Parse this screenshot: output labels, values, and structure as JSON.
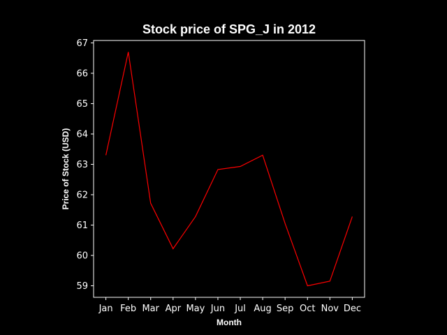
{
  "chart_data": {
    "type": "line",
    "title": "Stock price of SPG_J in 2012",
    "xlabel": "Month",
    "ylabel": "Price of Stock (USD)",
    "categories": [
      "Jan",
      "Feb",
      "Mar",
      "Apr",
      "May",
      "Jun",
      "Jul",
      "Aug",
      "Sep",
      "Oct",
      "Nov",
      "Dec"
    ],
    "series": [
      {
        "name": "SPG_J",
        "values": [
          63.3,
          66.7,
          61.72,
          60.22,
          61.28,
          62.83,
          62.93,
          63.3,
          61.05,
          59.0,
          59.15,
          61.28
        ],
        "color": "#ff0000"
      }
    ],
    "yticks": [
      59,
      60,
      61,
      62,
      63,
      64,
      65,
      66,
      67
    ],
    "ylim": [
      58.62,
      67.08
    ],
    "grid": false,
    "background": "#000000",
    "foreground": "#ffffff"
  }
}
